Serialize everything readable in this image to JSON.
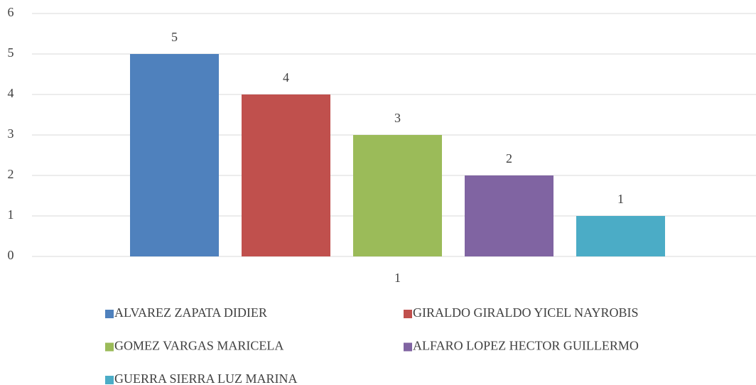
{
  "chart_data": {
    "type": "bar",
    "categories": [
      "1"
    ],
    "series": [
      {
        "name": "ALVAREZ ZAPATA DIDIER",
        "color": "#4f81bd",
        "values": [
          5
        ]
      },
      {
        "name": "GIRALDO GIRALDO YICEL NAYROBIS",
        "color": "#c0504d",
        "values": [
          4
        ]
      },
      {
        "name": "GOMEZ VARGAS MARICELA",
        "color": "#9bbb59",
        "values": [
          3
        ]
      },
      {
        "name": "ALFARO LOPEZ HECTOR GUILLERMO",
        "color": "#8064a2",
        "values": [
          2
        ]
      },
      {
        "name": "GUERRA SIERRA LUZ MARINA",
        "color": "#4bacc6",
        "values": [
          1
        ]
      }
    ],
    "ylim": [
      0,
      6
    ],
    "yticks": [
      0,
      1,
      2,
      3,
      4,
      5,
      6
    ],
    "grid": true,
    "legend": "bottom"
  }
}
